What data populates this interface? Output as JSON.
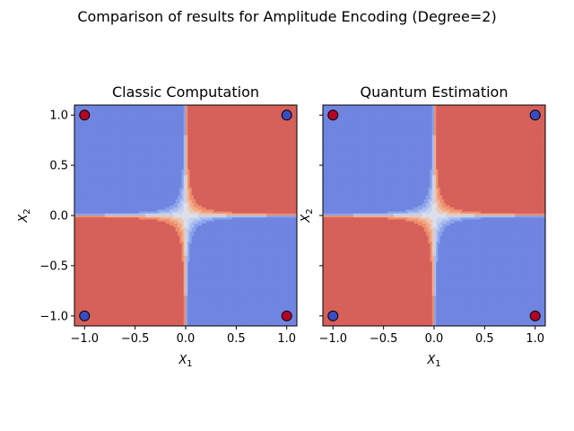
{
  "figure": {
    "suptitle": "Comparison of results for Amplitude Encoding (Degree=2)"
  },
  "chart_data": [
    {
      "type": "heatmap",
      "title": "Classic Computation",
      "xlabel_base": "X",
      "xlabel_sub": "1",
      "ylabel_base": "X",
      "ylabel_sub": "2",
      "xlim": [
        -1.1,
        1.1
      ],
      "ylim": [
        -1.1,
        1.1
      ],
      "xticks": [
        -1.0,
        -0.5,
        0.0,
        0.5,
        1.0
      ],
      "xtick_labels": [
        "−1.0",
        "−0.5",
        "0.0",
        "0.5",
        "1.0"
      ],
      "yticks": [
        -1.0,
        -0.5,
        0.0,
        0.5,
        1.0
      ],
      "ytick_labels": [
        "−1.0",
        "−0.5",
        "0.0",
        "0.5",
        "1.0"
      ],
      "show_yticklabels": true,
      "show_ylabel": true,
      "function": "x1*x2",
      "colormap": "coolwarm",
      "points": [
        {
          "x": -1.0,
          "y": 1.0,
          "class": "red"
        },
        {
          "x": 1.0,
          "y": 1.0,
          "class": "blue"
        },
        {
          "x": -1.0,
          "y": -1.0,
          "class": "blue"
        },
        {
          "x": 1.0,
          "y": -1.0,
          "class": "red"
        }
      ]
    },
    {
      "type": "heatmap",
      "title": "Quantum Estimation",
      "xlabel_base": "X",
      "xlabel_sub": "1",
      "ylabel_base": "X",
      "ylabel_sub": "2",
      "xlim": [
        -1.1,
        1.1
      ],
      "ylim": [
        -1.1,
        1.1
      ],
      "xticks": [
        -1.0,
        -0.5,
        0.0,
        0.5,
        1.0
      ],
      "xtick_labels": [
        "−1.0",
        "−0.5",
        "0.0",
        "0.5",
        "1.0"
      ],
      "yticks": [
        -1.0,
        -0.5,
        0.0,
        0.5,
        1.0
      ],
      "ytick_labels": [],
      "show_yticklabels": false,
      "show_ylabel": true,
      "function": "x1*x2",
      "colormap": "coolwarm",
      "points": [
        {
          "x": -1.0,
          "y": 1.0,
          "class": "red"
        },
        {
          "x": 1.0,
          "y": 1.0,
          "class": "blue"
        },
        {
          "x": -1.0,
          "y": -1.0,
          "class": "blue"
        },
        {
          "x": 1.0,
          "y": -1.0,
          "class": "red"
        }
      ]
    }
  ],
  "colors": {
    "red_region": "#d6605a",
    "blue_region": "#7085e0",
    "neutral": "#dcdfea",
    "point_red": "#b40426",
    "point_blue": "#3b4cc0",
    "point_edge": "#000000"
  }
}
